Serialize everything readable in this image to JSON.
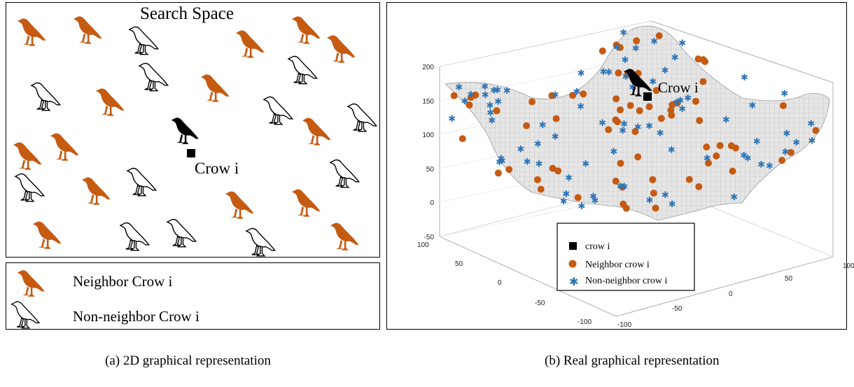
{
  "panel_a": {
    "search_title": "Search Space",
    "crow_i_label": "Crow i",
    "legend": {
      "neighbor": "Neighbor Crow i",
      "non_neighbor": "Non-neighbor Crow i"
    },
    "caption": "(a) 2D graphical representation"
  },
  "panel_b": {
    "crow_i_label": "Crow i",
    "z_ticks": [
      "200",
      "150",
      "100",
      "50",
      "0",
      "-50"
    ],
    "x_ticks": [
      "100",
      "50",
      "0",
      "-50",
      "-100"
    ],
    "y_ticks": [
      "-100",
      "-50",
      "0",
      "50",
      "100"
    ],
    "legend": {
      "crow": "crow i",
      "neighbor": "Neighbor crow i",
      "non_neighbor": "Non-neighbor crow i"
    },
    "caption": "(b) Real graphical representation"
  },
  "colors": {
    "neighbor": "#c55a11",
    "non_neighbor": "#2e75b6",
    "crow_i": "#000000",
    "surface": "#d9d9d9"
  }
}
